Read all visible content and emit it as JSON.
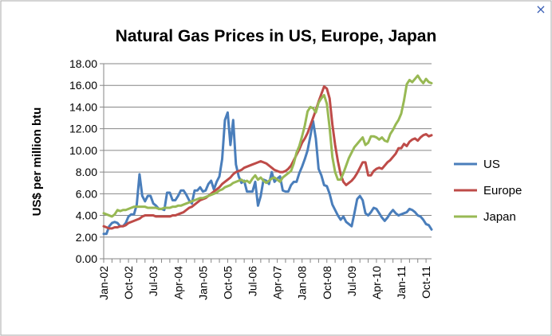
{
  "close_icon_glyph": "×",
  "chart_data": {
    "type": "line",
    "title": "Natural Gas Prices in US, Europe, Japan",
    "xlabel": "",
    "ylabel": "US$ per million btu",
    "ylim": [
      0,
      18
    ],
    "yticks": [
      "0.00",
      "2.00",
      "4.00",
      "6.00",
      "8.00",
      "10.00",
      "12.00",
      "14.00",
      "16.00",
      "18.00"
    ],
    "x_start": "Jan-02",
    "x_step_months": 1,
    "x_count": 120,
    "xtick_labels": [
      "Jan-02",
      "Oct-02",
      "Jul-03",
      "Apr-04",
      "Jan-05",
      "Oct-05",
      "Jul-06",
      "Apr-07",
      "Jan-08",
      "Oct-08",
      "Jul-09",
      "Apr-10",
      "Jan-11",
      "Oct-11"
    ],
    "xtick_index": [
      0,
      9,
      18,
      27,
      36,
      45,
      54,
      63,
      72,
      81,
      90,
      99,
      108,
      117
    ],
    "grid": {
      "horizontal": true,
      "vertical": false
    },
    "legend": "right",
    "series": [
      {
        "name": "US",
        "color": "#4a7ebb",
        "values": [
          2.3,
          2.3,
          3.0,
          3.3,
          3.4,
          3.3,
          3.0,
          3.0,
          3.3,
          3.9,
          4.1,
          4.1,
          5.0,
          7.8,
          5.8,
          5.3,
          5.8,
          5.8,
          5.1,
          4.9,
          4.6,
          4.6,
          4.5,
          6.1,
          6.1,
          5.4,
          5.4,
          5.8,
          6.3,
          6.3,
          5.9,
          5.4,
          5.1,
          6.3,
          6.3,
          6.6,
          6.2,
          6.3,
          6.9,
          7.2,
          6.4,
          7.1,
          7.6,
          9.2,
          12.8,
          13.5,
          10.5,
          12.8,
          8.7,
          7.6,
          7.0,
          7.2,
          6.2,
          6.2,
          6.2,
          7.1,
          4.9,
          5.8,
          7.3,
          7.2,
          6.9,
          8.0,
          7.1,
          7.4,
          7.6,
          6.3,
          6.2,
          6.2,
          6.8,
          7.1,
          7.1,
          7.9,
          8.5,
          9.2,
          10.0,
          11.3,
          12.7,
          11.1,
          8.3,
          7.7,
          6.8,
          6.7,
          6.0,
          5.0,
          4.5,
          4.0,
          3.6,
          3.9,
          3.4,
          3.2,
          3.0,
          4.2,
          5.5,
          5.8,
          5.4,
          4.2,
          4.0,
          4.3,
          4.7,
          4.6,
          4.2,
          3.8,
          3.5,
          3.8,
          4.2,
          4.5,
          4.2,
          4.0,
          4.1,
          4.2,
          4.3,
          4.6,
          4.5,
          4.3,
          4.0,
          3.9,
          3.6,
          3.2,
          3.1,
          2.7
        ]
      },
      {
        "name": "Europe",
        "color": "#be4b48",
        "values": [
          3.0,
          2.9,
          2.8,
          2.8,
          2.9,
          2.9,
          3.0,
          3.0,
          3.1,
          3.3,
          3.4,
          3.5,
          3.6,
          3.7,
          3.9,
          4.0,
          4.0,
          4.0,
          4.0,
          3.9,
          3.9,
          3.9,
          3.9,
          3.9,
          3.9,
          4.0,
          4.0,
          4.1,
          4.2,
          4.3,
          4.5,
          4.7,
          4.8,
          5.0,
          5.2,
          5.4,
          5.5,
          5.6,
          5.8,
          6.0,
          6.2,
          6.4,
          6.6,
          6.9,
          7.1,
          7.3,
          7.5,
          7.8,
          8.0,
          8.1,
          8.2,
          8.4,
          8.5,
          8.6,
          8.7,
          8.8,
          8.9,
          9.0,
          8.9,
          8.8,
          8.6,
          8.4,
          8.2,
          8.1,
          8.0,
          8.0,
          8.1,
          8.3,
          8.6,
          9.1,
          9.6,
          10.1,
          10.7,
          11.1,
          11.6,
          12.3,
          13.0,
          13.7,
          14.5,
          15.2,
          15.9,
          15.7,
          14.8,
          12.4,
          10.5,
          9.0,
          7.8,
          7.1,
          6.8,
          7.0,
          7.2,
          7.5,
          7.9,
          8.4,
          8.9,
          8.9,
          7.7,
          7.7,
          8.1,
          8.3,
          8.4,
          8.3,
          8.6,
          8.9,
          9.1,
          9.4,
          9.7,
          10.2,
          10.2,
          10.6,
          10.4,
          10.8,
          11.0,
          11.1,
          10.9,
          11.2,
          11.4,
          11.5,
          11.3,
          11.4
        ]
      },
      {
        "name": "Japan",
        "color": "#98b954",
        "values": [
          4.2,
          4.1,
          4.0,
          3.9,
          4.1,
          4.5,
          4.4,
          4.5,
          4.5,
          4.6,
          4.7,
          4.8,
          4.8,
          4.8,
          4.8,
          4.8,
          4.7,
          4.7,
          4.7,
          4.7,
          4.6,
          4.6,
          4.7,
          4.7,
          4.7,
          4.8,
          4.8,
          4.9,
          4.9,
          5.0,
          5.1,
          5.2,
          5.3,
          5.4,
          5.5,
          5.6,
          5.6,
          5.7,
          5.8,
          5.9,
          6.0,
          6.1,
          6.3,
          6.4,
          6.6,
          6.7,
          6.8,
          7.0,
          7.1,
          7.2,
          7.3,
          7.1,
          7.2,
          7.0,
          7.4,
          7.7,
          7.3,
          7.5,
          7.2,
          7.0,
          7.2,
          7.4,
          7.5,
          7.3,
          7.1,
          7.5,
          7.7,
          7.9,
          8.1,
          8.8,
          9.8,
          10.4,
          11.3,
          12.3,
          13.6,
          14.0,
          13.9,
          13.5,
          14.4,
          14.8,
          15.1,
          14.3,
          12.1,
          9.4,
          8.0,
          7.3,
          7.3,
          7.9,
          8.6,
          9.3,
          9.8,
          10.3,
          10.6,
          10.9,
          11.2,
          10.5,
          10.7,
          11.3,
          11.3,
          11.2,
          11.0,
          11.2,
          10.9,
          10.8,
          11.5,
          11.9,
          12.4,
          12.8,
          13.4,
          14.6,
          16.1,
          16.5,
          16.3,
          16.6,
          16.9,
          16.5,
          16.2,
          16.6,
          16.3,
          16.2
        ]
      }
    ]
  }
}
